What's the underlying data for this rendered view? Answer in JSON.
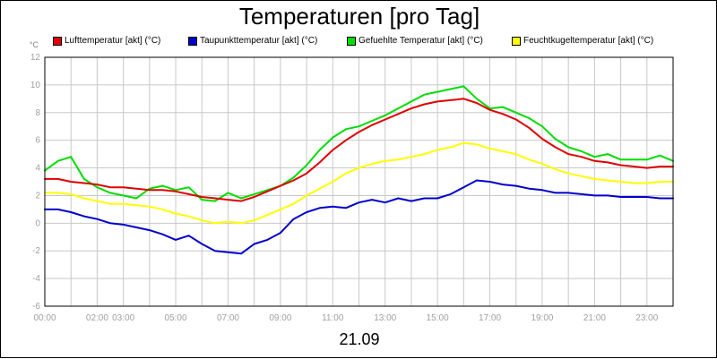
{
  "chart_data": {
    "type": "line",
    "title": "Temperaturen [pro Tag]",
    "ylabel": "°C",
    "xlabel": "21.09",
    "ylim": [
      -6,
      12
    ],
    "yticks": [
      -6,
      -4,
      -2,
      0,
      2,
      4,
      6,
      8,
      10,
      12
    ],
    "xlim": [
      0,
      24
    ],
    "xtick_labels": [
      {
        "hour": 0,
        "label": "00:00"
      },
      {
        "hour": 2,
        "label": "02:00"
      },
      {
        "hour": 3,
        "label": "03:00"
      },
      {
        "hour": 5,
        "label": "05:00"
      },
      {
        "hour": 7,
        "label": "07:00"
      },
      {
        "hour": 9,
        "label": "09:00"
      },
      {
        "hour": 11,
        "label": "11:00"
      },
      {
        "hour": 13,
        "label": "13:00"
      },
      {
        "hour": 15,
        "label": "15:00"
      },
      {
        "hour": 17,
        "label": "17:00"
      },
      {
        "hour": 19,
        "label": "19:00"
      },
      {
        "hour": 21,
        "label": "21:00"
      },
      {
        "hour": 23,
        "label": "23:00"
      }
    ],
    "grid": true,
    "legend_position": "top",
    "x": [
      0,
      0.5,
      1,
      1.5,
      2,
      2.5,
      3,
      3.5,
      4,
      4.5,
      5,
      5.5,
      6,
      6.5,
      7,
      7.5,
      8,
      8.5,
      9,
      9.5,
      10,
      10.5,
      11,
      11.5,
      12,
      12.5,
      13,
      13.5,
      14,
      14.5,
      15,
      15.5,
      16,
      16.5,
      17,
      17.5,
      18,
      18.5,
      19,
      19.5,
      20,
      20.5,
      21,
      21.5,
      22,
      22.5,
      23,
      23.5,
      24
    ],
    "series": [
      {
        "name": "Lufttemperatur [akt] (°C)",
        "color": "#e00000",
        "values": [
          3.2,
          3.2,
          3.0,
          2.9,
          2.8,
          2.6,
          2.6,
          2.5,
          2.4,
          2.4,
          2.3,
          2.1,
          1.9,
          1.8,
          1.7,
          1.6,
          1.9,
          2.3,
          2.7,
          3.1,
          3.6,
          4.4,
          5.3,
          6.0,
          6.6,
          7.1,
          7.5,
          7.9,
          8.3,
          8.6,
          8.8,
          8.9,
          9.0,
          8.7,
          8.2,
          7.9,
          7.5,
          6.9,
          6.1,
          5.5,
          5.0,
          4.8,
          4.5,
          4.4,
          4.2,
          4.1,
          4.0,
          4.1,
          4.1
        ]
      },
      {
        "name": "Taupunkttemperatur [akt] (°C)",
        "color": "#0000cc",
        "values": [
          1.0,
          1.0,
          0.8,
          0.5,
          0.3,
          0.0,
          -0.1,
          -0.3,
          -0.5,
          -0.8,
          -1.2,
          -0.9,
          -1.5,
          -2.0,
          -2.1,
          -2.2,
          -1.5,
          -1.2,
          -0.7,
          0.3,
          0.8,
          1.1,
          1.2,
          1.1,
          1.5,
          1.7,
          1.5,
          1.8,
          1.6,
          1.8,
          1.8,
          2.1,
          2.6,
          3.1,
          3.0,
          2.8,
          2.7,
          2.5,
          2.4,
          2.2,
          2.2,
          2.1,
          2.0,
          2.0,
          1.9,
          1.9,
          1.9,
          1.8,
          1.8
        ]
      },
      {
        "name": "Gefuehlte Temperatur [akt] (°C)",
        "color": "#00dd00",
        "values": [
          3.8,
          4.5,
          4.8,
          3.2,
          2.6,
          2.2,
          2.0,
          1.8,
          2.5,
          2.7,
          2.4,
          2.6,
          1.7,
          1.6,
          2.2,
          1.8,
          2.1,
          2.4,
          2.7,
          3.3,
          4.2,
          5.3,
          6.2,
          6.8,
          7.0,
          7.4,
          7.8,
          8.3,
          8.8,
          9.3,
          9.5,
          9.7,
          9.9,
          9.0,
          8.3,
          8.4,
          8.0,
          7.6,
          7.0,
          6.1,
          5.5,
          5.2,
          4.8,
          5.0,
          4.6,
          4.6,
          4.6,
          4.9,
          4.5
        ]
      },
      {
        "name": "Feuchtkugeltemperatur [akt] (°C)",
        "color": "#ffff00",
        "values": [
          2.2,
          2.2,
          2.1,
          1.8,
          1.6,
          1.4,
          1.4,
          1.3,
          1.2,
          1.0,
          0.7,
          0.5,
          0.2,
          0.0,
          0.1,
          0.0,
          0.2,
          0.6,
          1.0,
          1.4,
          2.0,
          2.5,
          3.0,
          3.6,
          4.0,
          4.3,
          4.5,
          4.6,
          4.8,
          5.0,
          5.3,
          5.5,
          5.8,
          5.7,
          5.4,
          5.2,
          5.0,
          4.6,
          4.3,
          3.9,
          3.6,
          3.4,
          3.2,
          3.1,
          3.0,
          2.9,
          2.9,
          3.0,
          3.0
        ]
      }
    ]
  }
}
